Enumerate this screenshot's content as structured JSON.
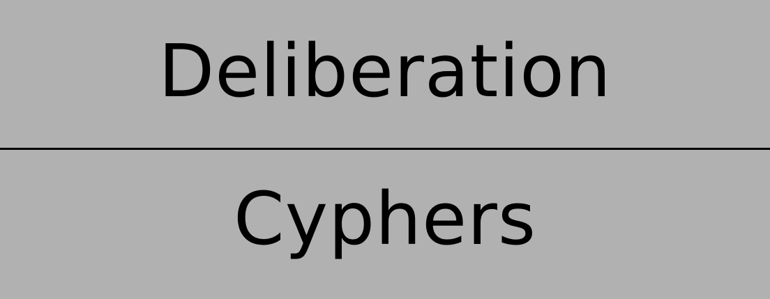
{
  "card": {
    "top_label": "Deliberation",
    "bottom_label": "Cyphers"
  },
  "colors": {
    "background": "#b1b1b1",
    "text": "#000000",
    "divider": "#000000"
  }
}
